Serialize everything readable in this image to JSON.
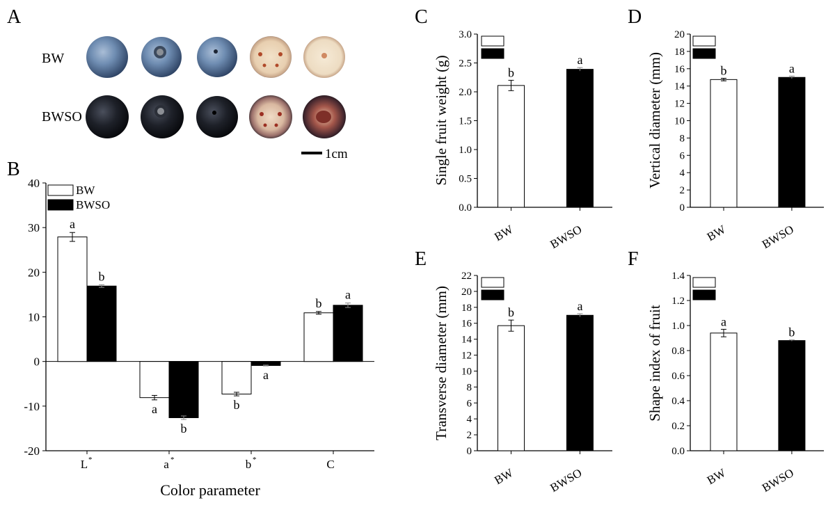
{
  "panel_a": {
    "letter": "A",
    "rows": [
      {
        "label": "BW",
        "key": "BW"
      },
      {
        "label": "BWSO",
        "key": "BWSO"
      }
    ],
    "scale_label": "1cm"
  },
  "colors": {
    "BW": "#ffffff",
    "BWSO": "#000000",
    "axis": "#000000"
  },
  "chart_data": [
    {
      "id": "B",
      "letter": "B",
      "type": "bar",
      "categories": [
        "L*",
        "a*",
        "b*",
        "C"
      ],
      "category_labels": [
        {
          "base": "L",
          "sup": "*"
        },
        {
          "base": "a",
          "sup": "*"
        },
        {
          "base": "b",
          "sup": "*"
        },
        {
          "base": "C",
          "sup": ""
        }
      ],
      "series": [
        {
          "name": "BW",
          "values": [
            27.9,
            -8.1,
            -7.3,
            10.9
          ],
          "errors": [
            1.0,
            0.5,
            0.4,
            0.3
          ],
          "letters": [
            "a",
            "a",
            "b",
            "b"
          ]
        },
        {
          "name": "BWSO",
          "values": [
            16.9,
            -12.6,
            -0.9,
            12.6
          ],
          "errors": [
            0.3,
            0.4,
            0.1,
            0.5
          ],
          "letters": [
            "b",
            "b",
            "a",
            "a"
          ]
        }
      ],
      "xlabel": "Color parameter",
      "ylabel": "",
      "ylim": [
        -20,
        40
      ],
      "yticks": [
        -20,
        -10,
        0,
        10,
        20,
        30,
        40
      ],
      "legend": "top-left"
    },
    {
      "id": "C",
      "letter": "C",
      "type": "bar",
      "categories": [
        "BW",
        "BWSO"
      ],
      "values": [
        2.11,
        2.39
      ],
      "errors": [
        0.09,
        0.03
      ],
      "letters": [
        "b",
        "a"
      ],
      "ylabel": "Single fruit weight (g)",
      "ylim": [
        0,
        3.0
      ],
      "yticks": [
        "0.0",
        "0.5",
        "1.0",
        "1.5",
        "2.0",
        "2.5",
        "3.0"
      ],
      "legend": "top-left"
    },
    {
      "id": "D",
      "letter": "D",
      "type": "bar",
      "categories": [
        "BW",
        "BWSO"
      ],
      "values": [
        14.75,
        15.0
      ],
      "errors": [
        0.15,
        0.15
      ],
      "letters": [
        "b",
        "a"
      ],
      "ylabel": "Vertical diameter (mm)",
      "ylim": [
        0,
        20
      ],
      "yticks": [
        "0",
        "2",
        "4",
        "6",
        "8",
        "10",
        "12",
        "14",
        "16",
        "18",
        "20"
      ],
      "legend": "top-left"
    },
    {
      "id": "E",
      "letter": "E",
      "type": "bar",
      "categories": [
        "BW",
        "BWSO"
      ],
      "values": [
        15.7,
        17.0
      ],
      "errors": [
        0.7,
        0.2
      ],
      "letters": [
        "b",
        "a"
      ],
      "ylabel": "Transverse diameter (mm)",
      "ylim": [
        0,
        22
      ],
      "yticks": [
        "0",
        "2",
        "4",
        "6",
        "8",
        "10",
        "12",
        "14",
        "16",
        "18",
        "20",
        "22"
      ],
      "legend": "top-left"
    },
    {
      "id": "F",
      "letter": "F",
      "type": "bar",
      "categories": [
        "BW",
        "BWSO"
      ],
      "values": [
        0.94,
        0.88
      ],
      "errors": [
        0.03,
        0.005
      ],
      "letters": [
        "a",
        "b"
      ],
      "ylabel": "Shape index of fruit",
      "ylim": [
        0,
        1.4
      ],
      "yticks": [
        "0.0",
        "0.2",
        "0.4",
        "0.6",
        "0.8",
        "1.0",
        "1.2",
        "1.4"
      ],
      "legend": "top-left"
    }
  ]
}
